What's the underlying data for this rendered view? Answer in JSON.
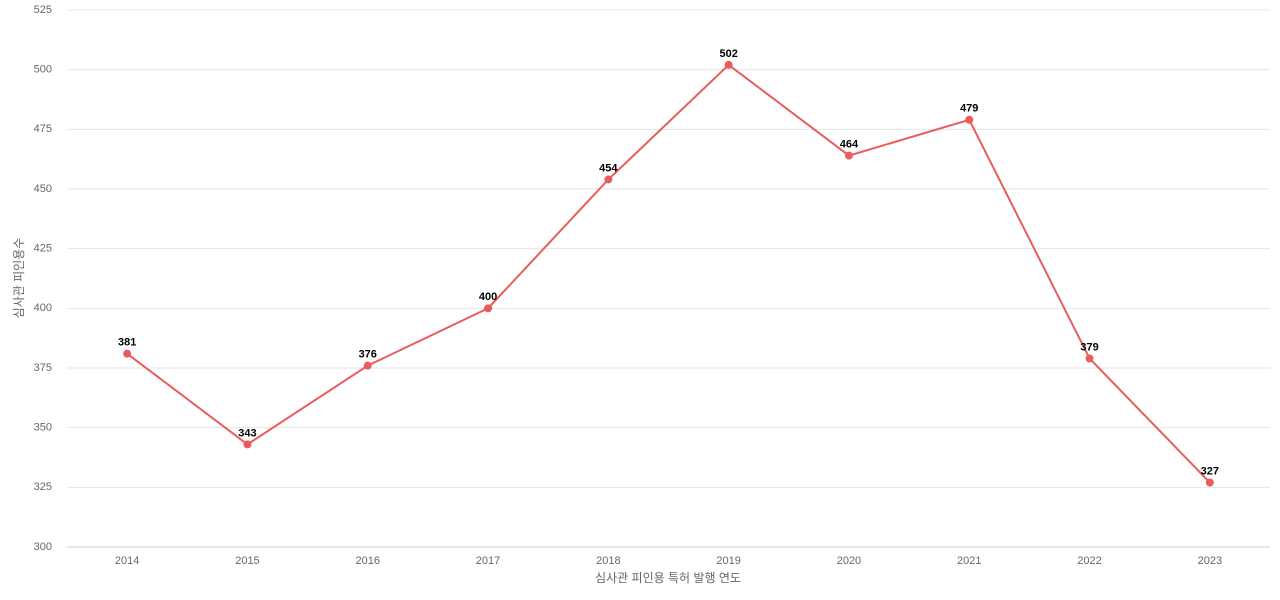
{
  "chart_data": {
    "type": "line",
    "x_label": "심사관 피인용 특허 발행 연도",
    "y_label": "심사관 피인용수",
    "categories": [
      "2014",
      "2015",
      "2016",
      "2017",
      "2018",
      "2019",
      "2020",
      "2021",
      "2022",
      "2023"
    ],
    "series": [
      {
        "name": "심사관 피인용수",
        "color": "#e85c5c",
        "values": [
          381,
          343,
          376,
          400,
          454,
          502,
          464,
          479,
          379,
          327
        ]
      }
    ],
    "ylim": [
      300,
      525
    ],
    "yticks": [
      300,
      325,
      350,
      375,
      400,
      425,
      450,
      475,
      500,
      525
    ],
    "grid": true
  }
}
